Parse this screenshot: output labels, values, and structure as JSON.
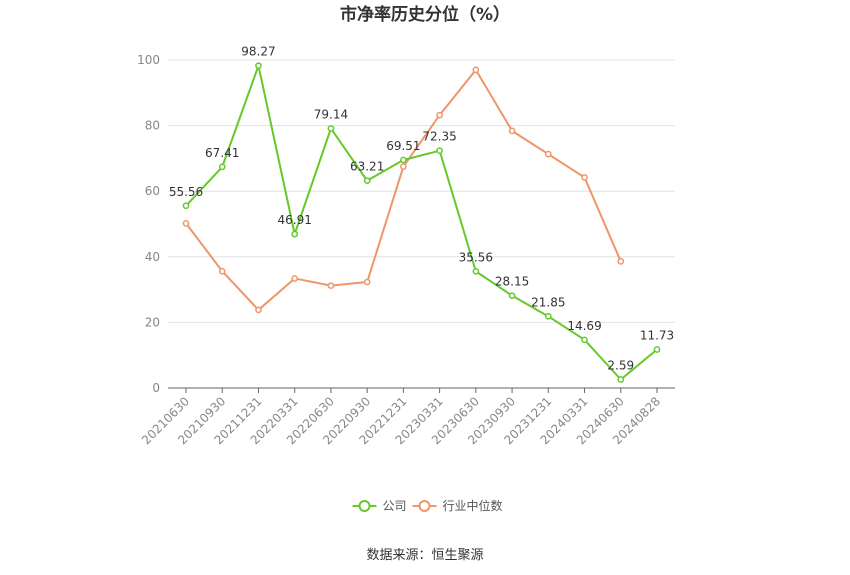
{
  "chart_data": {
    "type": "line",
    "title": "市净率历史分位（%）",
    "source": "数据来源：恒生聚源",
    "xlabel": "",
    "ylabel": "",
    "ylim": [
      0,
      100
    ],
    "yticks": [
      0,
      20,
      40,
      60,
      80,
      100
    ],
    "grid": true,
    "legend_position": "bottom",
    "categories": [
      "20210630",
      "20210930",
      "20211231",
      "20220331",
      "20220630",
      "20220930",
      "20221231",
      "20230331",
      "20230630",
      "20230930",
      "20231231",
      "20240331",
      "20240630",
      "20240828"
    ],
    "series": [
      {
        "name": "公司",
        "color": "#66c82a",
        "show_labels": true,
        "values": [
          55.56,
          67.41,
          98.27,
          46.91,
          79.14,
          63.21,
          69.51,
          72.35,
          35.56,
          28.15,
          21.85,
          14.69,
          2.59,
          11.73
        ]
      },
      {
        "name": "行业中位数",
        "color": "#f0956a",
        "show_labels": false,
        "values": [
          50.2,
          35.6,
          23.8,
          33.4,
          31.2,
          32.3,
          67.5,
          83.2,
          97.0,
          78.4,
          71.3,
          64.2,
          38.6,
          null
        ]
      }
    ]
  }
}
